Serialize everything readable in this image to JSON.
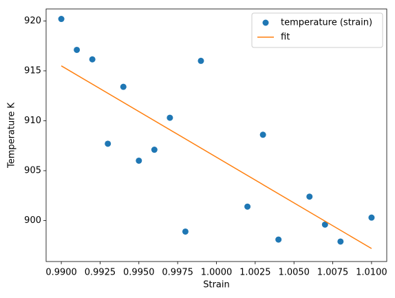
{
  "chart_data": {
    "type": "scatter",
    "xlabel": "Strain",
    "ylabel": "Temperature K",
    "xlim": [
      0.98902,
      1.01098
    ],
    "ylim": [
      895.9,
      921.2
    ],
    "xticks": [
      {
        "value": 0.99,
        "label": "0.9900"
      },
      {
        "value": 0.9925,
        "label": "0.9925"
      },
      {
        "value": 0.995,
        "label": "0.9950"
      },
      {
        "value": 0.9975,
        "label": "0.9975"
      },
      {
        "value": 1.0,
        "label": "1.0000"
      },
      {
        "value": 1.0025,
        "label": "1.0025"
      },
      {
        "value": 1.005,
        "label": "1.0050"
      },
      {
        "value": 1.0075,
        "label": "1.0075"
      },
      {
        "value": 1.01,
        "label": "1.0100"
      }
    ],
    "yticks": [
      900,
      905,
      910,
      915,
      920
    ],
    "legend": "upper right",
    "series": [
      {
        "name": "temperature (strain)",
        "type": "scatter",
        "color": "#1f77b4",
        "x": [
          0.99,
          0.991,
          0.992,
          0.993,
          0.994,
          0.995,
          0.996,
          0.997,
          0.998,
          0.999,
          1.002,
          1.003,
          1.004,
          1.006,
          1.007,
          1.008,
          1.01
        ],
        "values": [
          920.2,
          917.1,
          916.15,
          907.7,
          913.4,
          906.0,
          907.1,
          910.3,
          898.9,
          916.0,
          901.4,
          908.6,
          898.1,
          902.4,
          899.6,
          897.9,
          900.3
        ]
      },
      {
        "name": "fit",
        "type": "line",
        "color": "#ff7f0e",
        "x": [
          0.99,
          1.01
        ],
        "values": [
          915.5,
          897.2
        ]
      }
    ]
  }
}
